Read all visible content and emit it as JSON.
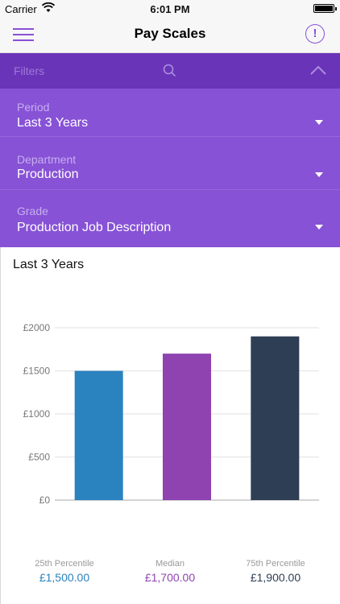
{
  "status_bar": {
    "carrier": "Carrier",
    "time": "6:01 PM"
  },
  "nav": {
    "title": "Pay Scales"
  },
  "filter_bar": {
    "label": "Filters"
  },
  "filters": [
    {
      "label": "Period",
      "value": "Last 3 Years"
    },
    {
      "label": "Department",
      "value": "Production"
    },
    {
      "label": "Grade",
      "value": "Production Job Description"
    }
  ],
  "chart_title": "Last 3 Years",
  "colors": {
    "accent": "#8a4fd6",
    "filter_bg": "#8752d6",
    "filter_bar_bg": "#6a34b8"
  },
  "chart_data": {
    "type": "bar",
    "categories": [
      "25th Percentile",
      "Median",
      "75th Percentile"
    ],
    "values": [
      1500,
      1700,
      1900
    ],
    "value_labels": [
      "£1,500.00",
      "£1,700.00",
      "£1,900.00"
    ],
    "colors": [
      "#2a82be",
      "#8e43b0",
      "#2e3e54"
    ],
    "ylim": [
      0,
      2000
    ],
    "yticks": [
      0,
      500,
      1000,
      1500,
      2000
    ],
    "ytick_labels": [
      "£0",
      "£500",
      "£1000",
      "£1500",
      "£2000"
    ],
    "grid": true
  }
}
